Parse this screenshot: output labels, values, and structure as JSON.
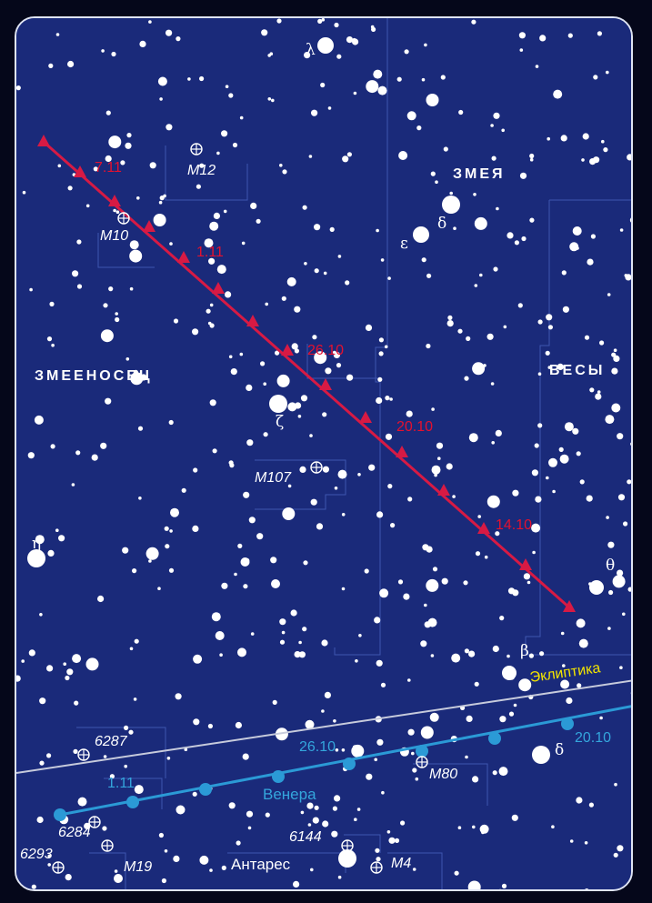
{
  "colors": {
    "sky": "#1a2a7a",
    "frame": "#dfe4f3",
    "mars_path": "#d71a44",
    "venus_path": "#2b9ad6",
    "ecliptic": "#c7cbdc",
    "ecliptic_label": "#f3e400",
    "stars": "#ffffff"
  },
  "constellations": {
    "ophiuchus": "ЗМЕЕНОСЕЦ",
    "serpens": "ЗМЕЯ",
    "libra": "ВЕСЫ"
  },
  "greek_letters": {
    "lambda": "λ",
    "epsilon": "ε",
    "delta_serpens": "δ",
    "zeta": "ζ",
    "eta": "η",
    "theta": "θ",
    "beta": "β",
    "delta_scorpius": "δ"
  },
  "deep_sky_objects": {
    "m12": "M12",
    "m10": "M10",
    "m107": "M107",
    "m80": "M80",
    "m19": "M19",
    "m4": "M4",
    "ngc6287": "6287",
    "ngc6284": "6284",
    "ngc6293": "6293",
    "ngc6144": "6144"
  },
  "mars_path": {
    "dates": {
      "d7_11": "7.11",
      "d1_11": "1.11",
      "d26_10": "26.10",
      "d20_10": "20.10",
      "d14_10": "14.10"
    }
  },
  "venus_path": {
    "name": "Венера",
    "dates": {
      "d26_10": "26.10",
      "d1_11": "1.11",
      "d20_10": "20.10"
    }
  },
  "ecliptic_label": "Эклиптика",
  "star_names": {
    "antares": "Антарес"
  }
}
